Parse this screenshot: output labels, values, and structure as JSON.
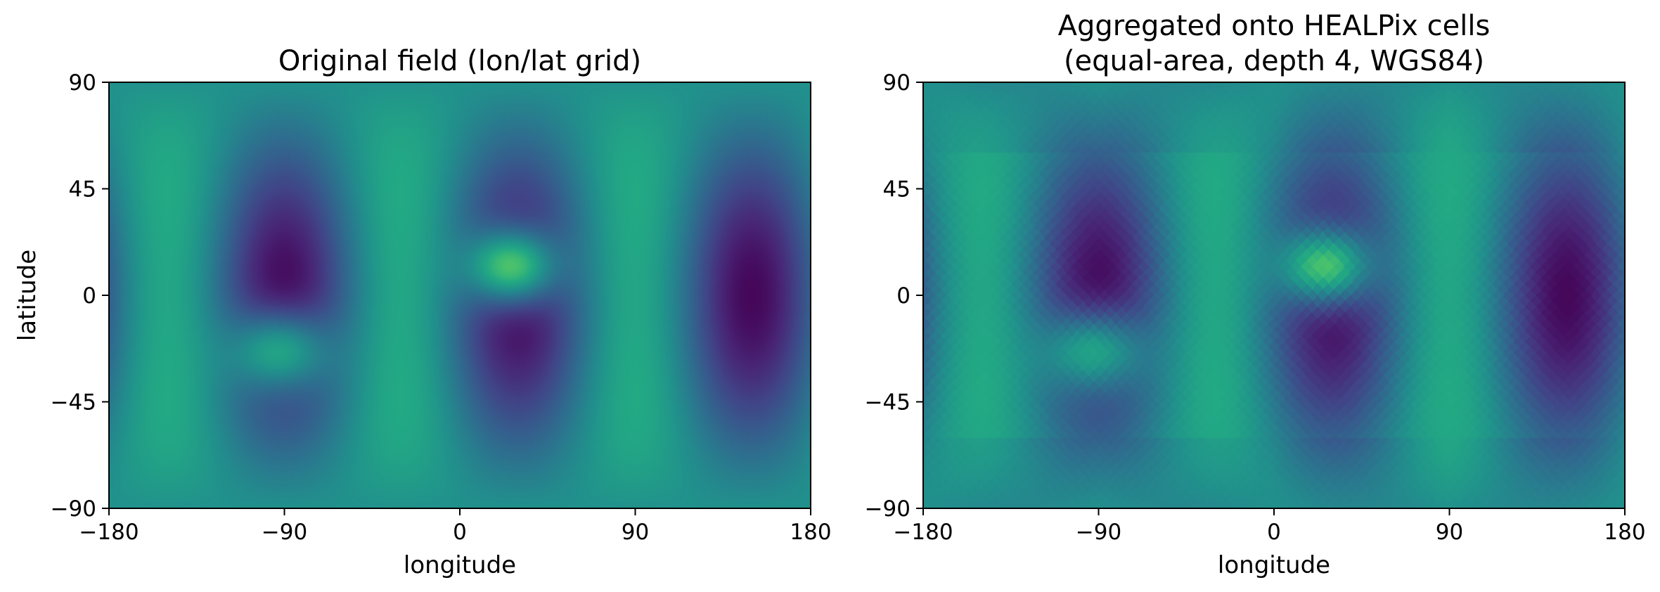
{
  "chart_data": [
    {
      "type": "heatmap",
      "title": "Original field (lon/lat grid)",
      "xlabel": "longitude",
      "ylabel": "latitude",
      "xlim": [
        -180,
        180
      ],
      "ylim": [
        -90,
        90
      ],
      "xticks": [
        -180,
        -90,
        0,
        90,
        180
      ],
      "yticks": [
        -90,
        -45,
        0,
        45,
        90
      ],
      "xtick_labels": [
        "−180",
        "−90",
        "0",
        "90",
        "180"
      ],
      "ytick_labels": [
        "−90",
        "−45",
        "0",
        "45",
        "90"
      ],
      "colormap": "viridis",
      "grid": false
    },
    {
      "type": "heatmap",
      "title_lines": [
        "Aggregated onto HEALPix cells",
        "(equal-area, depth 4, WGS84)"
      ],
      "xlabel": "longitude",
      "ylabel": "",
      "xlim": [
        -180,
        180
      ],
      "ylim": [
        -90,
        90
      ],
      "xticks": [
        -180,
        -90,
        0,
        90,
        180
      ],
      "yticks": [
        -90,
        -45,
        0,
        45,
        90
      ],
      "xtick_labels": [
        "−180",
        "−90",
        "0",
        "90",
        "180"
      ],
      "ytick_labels": [
        "−90",
        "−45",
        "0",
        "45",
        "90"
      ],
      "colormap": "viridis",
      "grid": false
    }
  ]
}
